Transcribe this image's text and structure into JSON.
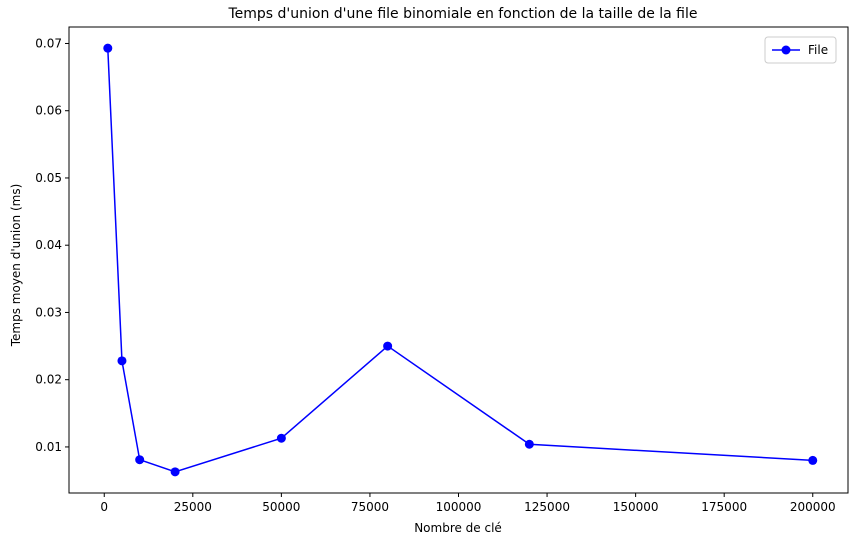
{
  "chart_data": {
    "type": "line",
    "title": "Temps d'union d'une file binomiale en fonction de la taille de la file",
    "xlabel": "Nombre de clé",
    "ylabel": "Temps moyen d'union (ms)",
    "xlim": [
      -9950,
      209950
    ],
    "ylim": [
      0.00315,
      0.07245
    ],
    "xticks": [
      0,
      25000,
      50000,
      75000,
      100000,
      125000,
      150000,
      175000,
      200000
    ],
    "yticks": [
      0.01,
      0.02,
      0.03,
      0.04,
      0.05,
      0.06,
      0.07
    ],
    "grid": false,
    "legend": "top-right",
    "series": [
      {
        "name": "File",
        "color": "#0000ff",
        "marker": "circle",
        "x": [
          1000,
          5000,
          10000,
          20000,
          50000,
          80000,
          120000,
          200000
        ],
        "y": [
          0.0693,
          0.0228,
          0.0081,
          0.0063,
          0.0113,
          0.025,
          0.0104,
          0.008
        ]
      }
    ]
  }
}
